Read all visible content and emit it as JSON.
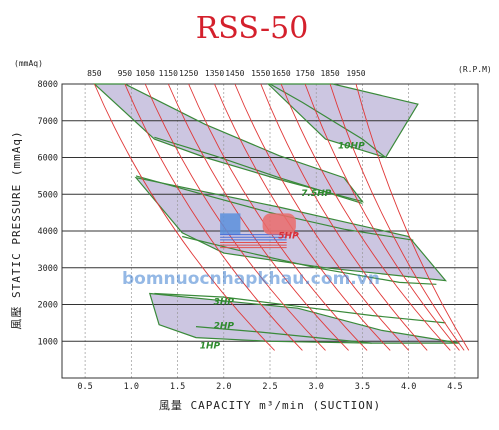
{
  "chart_data": {
    "type": "performance-curve",
    "title": "RSS-50",
    "xlabel": "風量 CAPACITY m³/min (SUCTION)",
    "ylabel": "風壓 STATIC PRESSURE (mmAq)",
    "y_unit": "(mmAq)",
    "rpm_unit": "(R.P.M)",
    "xlim": [
      0.25,
      4.75
    ],
    "ylim": [
      0,
      8000
    ],
    "x_ticks": [
      "0.5",
      "1.0",
      "1.5",
      "2.0",
      "2.5",
      "3.0",
      "3.5",
      "4.0",
      "4.5"
    ],
    "y_ticks": [
      "1000",
      "2000",
      "3000",
      "4000",
      "5000",
      "6000",
      "7000",
      "8000"
    ],
    "grid": true,
    "rpm_lines": [
      {
        "label": "850",
        "top_x": 0.6,
        "x0": 0.6,
        "x1": 2.55
      },
      {
        "label": "950",
        "top_x": 0.93,
        "x0": 0.93,
        "x1": 2.85
      },
      {
        "label": "1050",
        "top_x": 1.15,
        "x0": 1.15,
        "x1": 3.1
      },
      {
        "label": "1150",
        "top_x": 1.4,
        "x0": 1.4,
        "x1": 3.35
      },
      {
        "label": "1250",
        "top_x": 1.62,
        "x0": 1.62,
        "x1": 3.55
      },
      {
        "label": "1350",
        "top_x": 1.9,
        "x0": 1.9,
        "x1": 3.8
      },
      {
        "label": "1450",
        "top_x": 2.12,
        "x0": 2.12,
        "x1": 4.0
      },
      {
        "label": "1550",
        "top_x": 2.4,
        "x0": 2.4,
        "x1": 4.2
      },
      {
        "label": "1650",
        "top_x": 2.62,
        "x0": 2.62,
        "x1": 4.45
      },
      {
        "label": "1750",
        "top_x": 2.88,
        "x0": 2.88,
        "x1": 4.55
      },
      {
        "label": "1850",
        "top_x": 3.15,
        "x0": 3.15,
        "x1": 4.6
      },
      {
        "label": "1950",
        "top_x": 3.43,
        "x0": 3.43,
        "x1": 4.65
      }
    ],
    "regions": [
      {
        "name": "1HP",
        "polygon": [
          [
            1.2,
            2300
          ],
          [
            2.8,
            1900
          ],
          [
            3.7,
            1300
          ],
          [
            4.55,
            950
          ],
          [
            3.6,
            950
          ],
          [
            2.5,
            1000
          ],
          [
            1.7,
            1100
          ],
          [
            1.3,
            1450
          ]
        ]
      },
      {
        "name": "3HP",
        "polygon": [
          [
            1.05,
            5450
          ],
          [
            2.6,
            4650
          ],
          [
            4.0,
            3850
          ],
          [
            4.4,
            2650
          ],
          [
            3.1,
            3000
          ],
          [
            2.0,
            3400
          ],
          [
            1.55,
            3950
          ]
        ]
      },
      {
        "name": "7.5HP",
        "polygon": [
          [
            0.6,
            8000
          ],
          [
            0.93,
            8000
          ],
          [
            1.8,
            6900
          ],
          [
            2.6,
            6050
          ],
          [
            3.3,
            5450
          ],
          [
            3.5,
            4800
          ],
          [
            2.6,
            5400
          ],
          [
            1.8,
            6000
          ],
          [
            1.25,
            6500
          ]
        ]
      },
      {
        "name": "10HP",
        "polygon": [
          [
            2.48,
            8000
          ],
          [
            3.18,
            8000
          ],
          [
            4.1,
            7450
          ],
          [
            3.75,
            6000
          ],
          [
            3.1,
            6500
          ]
        ]
      }
    ],
    "curves": [
      {
        "name": "10HP_top",
        "points": [
          [
            2.5,
            8000
          ],
          [
            2.85,
            7500
          ],
          [
            3.5,
            6500
          ],
          [
            3.75,
            6000
          ]
        ]
      },
      {
        "name": "7.5HP_a",
        "points": [
          [
            1.25,
            6550
          ],
          [
            1.9,
            6050
          ],
          [
            2.6,
            5450
          ],
          [
            3.5,
            4750
          ]
        ]
      },
      {
        "name": "7.5HP_b",
        "points": [
          [
            1.05,
            5500
          ],
          [
            1.7,
            5050
          ],
          [
            2.5,
            4500
          ],
          [
            3.3,
            4050
          ],
          [
            4.05,
            3750
          ]
        ]
      },
      {
        "name": "3HP_a",
        "points": [
          [
            1.55,
            3850
          ],
          [
            2.2,
            3450
          ],
          [
            3.0,
            3000
          ],
          [
            3.9,
            2600
          ],
          [
            4.3,
            2550
          ]
        ]
      },
      {
        "name": "2HP_a",
        "points": [
          [
            1.25,
            2300
          ],
          [
            2.0,
            2200
          ],
          [
            2.8,
            1950
          ],
          [
            3.6,
            1700
          ],
          [
            4.4,
            1500
          ]
        ]
      },
      {
        "name": "1HP_a",
        "points": [
          [
            1.7,
            1400
          ],
          [
            2.4,
            1250
          ],
          [
            3.0,
            1100
          ],
          [
            3.6,
            950
          ]
        ]
      }
    ],
    "hp_labels": [
      {
        "text": "10HP",
        "x": 3.38,
        "y": 6250
      },
      {
        "text": "7.5HP",
        "x": 3.0,
        "y": 4950
      },
      {
        "text": "5HP",
        "x": 2.7,
        "y": 3800
      },
      {
        "text": "3HP",
        "x": 2.0,
        "y": 2000
      },
      {
        "text": "2HP",
        "x": 2.0,
        "y": 1350
      },
      {
        "text": "1HP",
        "x": 1.85,
        "y": 800
      }
    ],
    "watermark": "bomnuocnhapkhau.com.vn"
  }
}
